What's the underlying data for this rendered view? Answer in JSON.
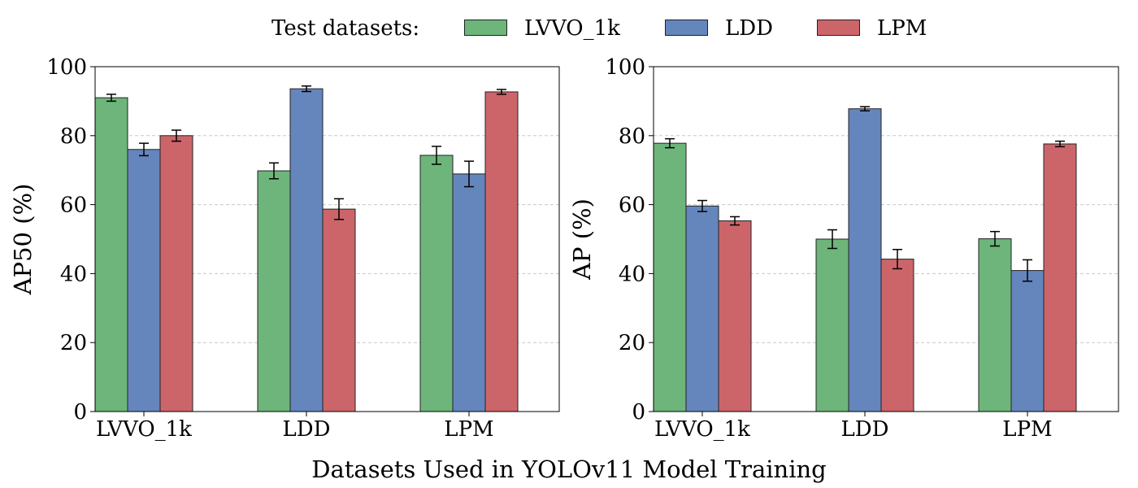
{
  "legend": {
    "title": "Test datasets:",
    "entries": [
      {
        "label": "LVVO_1k",
        "color": "#6db57b"
      },
      {
        "label": "LDD",
        "color": "#6586bc"
      },
      {
        "label": "LPM",
        "color": "#cc6569"
      }
    ]
  },
  "shared_xlabel": "Datasets Used in YOLOv11 Model Training",
  "chart_data": [
    {
      "type": "bar",
      "title": "",
      "xlabel": "",
      "ylabel": "AP50 (%)",
      "ylim": [
        0,
        100
      ],
      "yticks": [
        0,
        20,
        40,
        60,
        80,
        100
      ],
      "grid": "horizontal dashed",
      "categories": [
        "LVVO_1k",
        "LDD",
        "LPM"
      ],
      "series": [
        {
          "name": "LVVO_1k",
          "values": [
            91.0,
            69.8,
            74.3
          ],
          "errors": [
            1.0,
            2.3,
            2.6
          ]
        },
        {
          "name": "LDD",
          "values": [
            76.0,
            93.6,
            68.9
          ],
          "errors": [
            1.8,
            0.8,
            3.7
          ]
        },
        {
          "name": "LPM",
          "values": [
            80.0,
            58.7,
            92.7
          ],
          "errors": [
            1.6,
            3.0,
            0.7
          ]
        }
      ]
    },
    {
      "type": "bar",
      "title": "",
      "xlabel": "",
      "ylabel": "AP (%)",
      "ylim": [
        0,
        100
      ],
      "yticks": [
        0,
        20,
        40,
        60,
        80,
        100
      ],
      "grid": "horizontal dashed",
      "categories": [
        "LVVO_1k",
        "LDD",
        "LPM"
      ],
      "series": [
        {
          "name": "LVVO_1k",
          "values": [
            77.8,
            50.0,
            50.1
          ],
          "errors": [
            1.3,
            2.7,
            2.1
          ]
        },
        {
          "name": "LDD",
          "values": [
            59.6,
            87.8,
            40.9
          ],
          "errors": [
            1.6,
            0.6,
            3.1
          ]
        },
        {
          "name": "LPM",
          "values": [
            55.3,
            44.2,
            77.6
          ],
          "errors": [
            1.2,
            2.8,
            0.8
          ]
        }
      ]
    }
  ]
}
